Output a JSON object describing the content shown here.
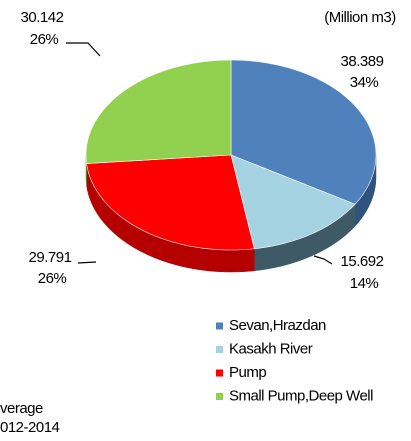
{
  "chart_data": {
    "type": "pie",
    "unit": "(Million m3)",
    "categories": [
      "Sevan,Hrazdan",
      "Kasakh River",
      "Pump",
      "Small Pump,Deep Well"
    ],
    "values": [
      38.389,
      15.692,
      29.791,
      30.142
    ],
    "percent_labels": [
      "34%",
      "14%",
      "26%",
      "26%"
    ],
    "colors": [
      "#4f81bd",
      "#a5d3e1",
      "#ff0000",
      "#92d050"
    ],
    "side_colors": [
      "#2f527f",
      "#3d5a66",
      "#b40000",
      "#5d8a2c"
    ],
    "note": [
      "verage",
      "012-2014"
    ]
  }
}
